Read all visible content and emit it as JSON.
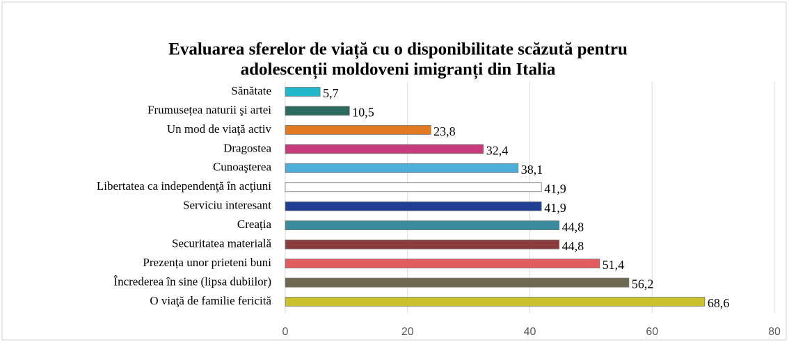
{
  "chart_data": {
    "type": "barh",
    "title": [
      "Evaluarea sferelor de viață cu o disponibilitate scăzută pentru",
      "adolescenții moldoveni imigranți din Italia"
    ],
    "categories": [
      "Sănătate",
      "Frumusețea naturii şi artei",
      "Un mod de viaţă activ",
      "Dragostea",
      "Cunoaşterea",
      "Libertatea ca independenţă în acţiuni",
      "Serviciu interesant",
      "Creația",
      "Securitatea materială",
      "Prezența unor prieteni buni",
      "Încrederea în sine (lipsa dubiilor)",
      "O viaţă de familie fericită"
    ],
    "values": [
      5.7,
      10.5,
      23.8,
      32.4,
      38.1,
      41.9,
      41.9,
      44.8,
      44.8,
      51.4,
      56.2,
      68.6
    ],
    "value_labels": [
      "5,7",
      "10,5",
      "23,8",
      "32,4",
      "38,1",
      "41,9",
      "41,9",
      "44,8",
      "44,8",
      "51,4",
      "56,2",
      "68,6"
    ],
    "colors": [
      "#22b8cc",
      "#2b6b60",
      "#e07b22",
      "#c83a7c",
      "#4cb0da",
      "#ffffff",
      "#213f92",
      "#3a8c9c",
      "#8c3c3c",
      "#e05c5e",
      "#6c6852",
      "#c9c22c"
    ],
    "xlim": [
      0,
      80
    ],
    "xticks": [
      0,
      20,
      40,
      60,
      80
    ],
    "grid": true
  }
}
